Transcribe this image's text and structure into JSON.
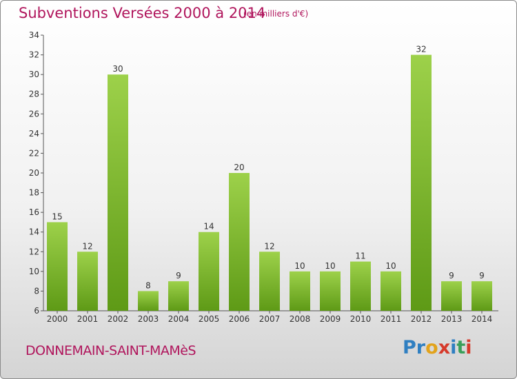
{
  "title": "Subventions Versées 2000 à 2014",
  "subtitle": "(en milliers d'€)",
  "place": "DONNEMAIN-SAINT-MAMèS",
  "logo": {
    "text": "Proxiti",
    "colors": [
      "#2f7fc1",
      "#2f7fc1",
      "#e2a31c",
      "#d63a2b",
      "#2f7fc1",
      "#3aa05a",
      "#d63a2b"
    ]
  },
  "chart_data": {
    "type": "bar",
    "categories": [
      "2000",
      "2001",
      "2002",
      "2003",
      "2004",
      "2005",
      "2006",
      "2007",
      "2008",
      "2009",
      "2010",
      "2011",
      "2012",
      "2013",
      "2014"
    ],
    "values": [
      15,
      12,
      30,
      8,
      9,
      14,
      20,
      12,
      10,
      10,
      11,
      10,
      32,
      9,
      9
    ],
    "ylim": [
      6,
      34
    ],
    "yticks": [
      6,
      8,
      10,
      12,
      14,
      16,
      18,
      20,
      22,
      24,
      26,
      28,
      30,
      32,
      34
    ],
    "grid": false,
    "bar_colors": {
      "top": "#9dd14a",
      "bottom": "#5e9a16"
    }
  }
}
